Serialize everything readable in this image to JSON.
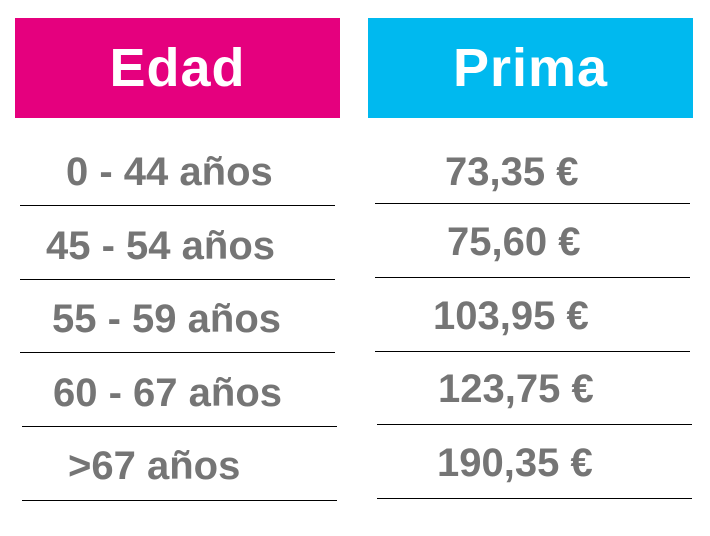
{
  "headers": {
    "edad": "Edad",
    "prima": "Prima"
  },
  "colors": {
    "edad_header": "#e5007e",
    "prima_header": "#00b9ef",
    "value_text": "#757575"
  },
  "rows": [
    {
      "edad": "0 - 44 años",
      "prima": "73,35 €"
    },
    {
      "edad": "45 - 54 años",
      "prima": "75,60 €"
    },
    {
      "edad": "55 - 59 años",
      "prima": "103,95 €"
    },
    {
      "edad": "60 - 67 años",
      "prima": "123,75 €"
    },
    {
      "edad": ">67 años",
      "prima": "190,35 €"
    }
  ]
}
